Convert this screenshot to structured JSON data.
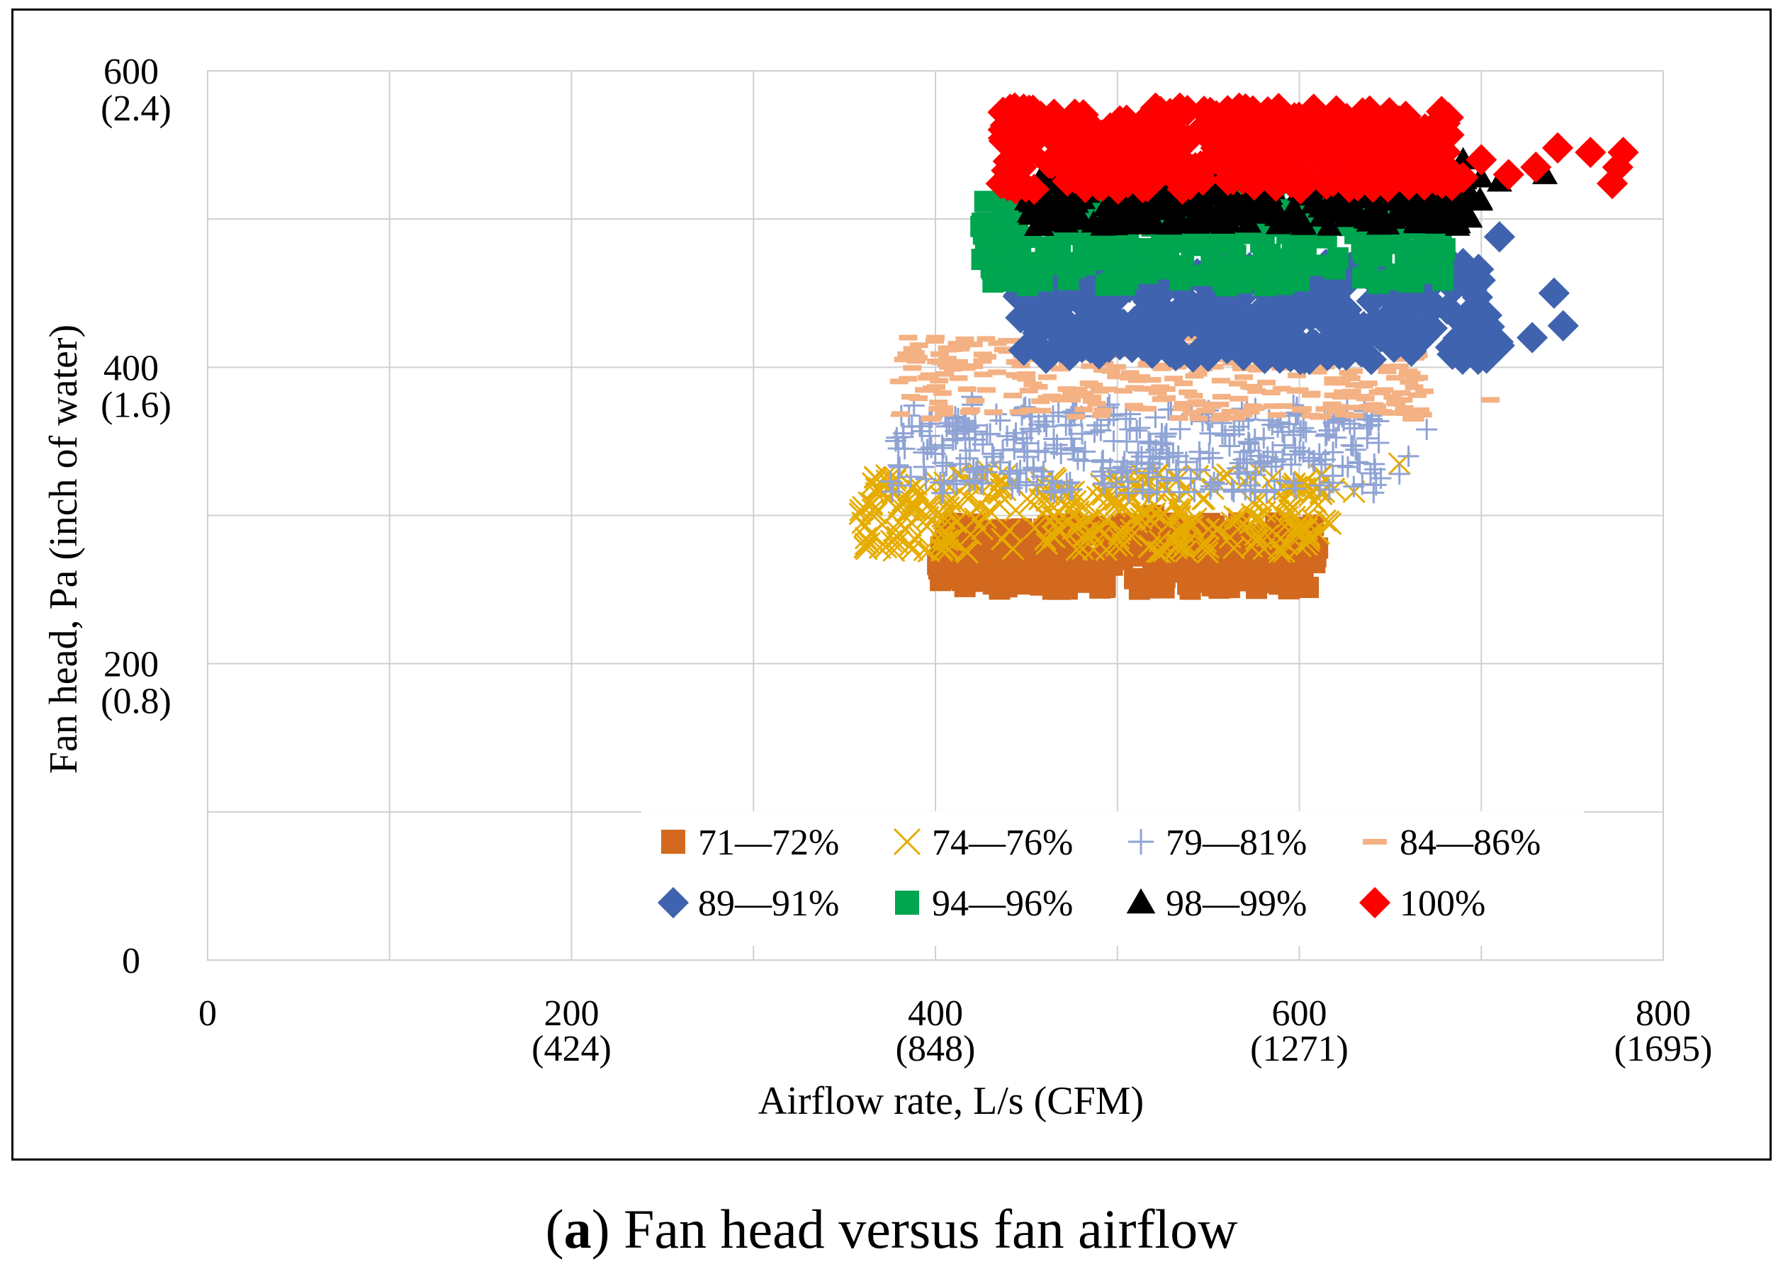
{
  "chart_data": {
    "type": "scatter",
    "title": "",
    "xlabel": "Airflow rate, L/s (CFM)",
    "ylabel": "Fan head, Pa (inch of water)",
    "xlim": [
      0,
      800
    ],
    "ylim": [
      0,
      600
    ],
    "x_major_step": 100,
    "y_major_step": 100,
    "grid": true,
    "x_ticks": [
      {
        "value": 0,
        "label": "0",
        "sub": ""
      },
      {
        "value": 200,
        "label": "200",
        "sub": "(424)"
      },
      {
        "value": 400,
        "label": "400",
        "sub": "(848)"
      },
      {
        "value": 600,
        "label": "600",
        "sub": "(1271)"
      },
      {
        "value": 800,
        "label": "800",
        "sub": "(1695)"
      }
    ],
    "y_ticks": [
      {
        "value": 0,
        "label": "0",
        "sub": ""
      },
      {
        "value": 200,
        "label": "200",
        "sub": "(0.8)"
      },
      {
        "value": 400,
        "label": "400",
        "sub": "(1.6)"
      },
      {
        "value": 600,
        "label": "600",
        "sub": "(2.4)"
      }
    ],
    "legend_position": "bottom-right",
    "series": [
      {
        "name": "71—72%",
        "marker": "square",
        "color": "#D2691E",
        "bands": [
          {
            "x0": 400,
            "x1": 610,
            "y0": 250,
            "y1": 295
          }
        ],
        "extra_points": [
          [
            610,
            278
          ],
          [
            520,
            300
          ]
        ]
      },
      {
        "name": "74—76%",
        "marker": "x",
        "color": "#E6AC00",
        "bands": [
          {
            "x0": 358,
            "x1": 620,
            "y0": 275,
            "y1": 330
          }
        ],
        "extra_points": [
          [
            630,
            316
          ],
          [
            655,
            335
          ],
          [
            360,
            295
          ]
        ]
      },
      {
        "name": "79—81%",
        "marker": "plus",
        "color": "#8FA3D4",
        "bands": [
          {
            "x0": 375,
            "x1": 645,
            "y0": 315,
            "y1": 375
          }
        ],
        "extra_points": [
          [
            655,
            328
          ],
          [
            660,
            340
          ],
          [
            670,
            358
          ],
          [
            420,
            380
          ]
        ]
      },
      {
        "name": "84—86%",
        "marker": "dash",
        "color": "#F4B183",
        "bands": [
          {
            "x0": 380,
            "x1": 670,
            "y0": 365,
            "y1": 420
          }
        ],
        "extra_points": [
          [
            385,
            420
          ],
          [
            400,
            420
          ],
          [
            705,
            378
          ]
        ]
      },
      {
        "name": "89—91%",
        "marker": "diamond",
        "color": "#3F63AE",
        "bands": [
          {
            "x0": 445,
            "x1": 710,
            "y0": 405,
            "y1": 470
          }
        ],
        "extra_points": [
          [
            710,
            488
          ],
          [
            740,
            450
          ],
          [
            745,
            428
          ],
          [
            728,
            420
          ],
          [
            690,
            470
          ]
        ]
      },
      {
        "name": "94—96%",
        "marker": "square",
        "color": "#00A550",
        "bands": [
          {
            "x0": 425,
            "x1": 680,
            "y0": 455,
            "y1": 520
          }
        ],
        "extra_points": [
          [
            425,
            495
          ],
          [
            560,
            455
          ],
          [
            680,
            480
          ]
        ]
      },
      {
        "name": "98—99%",
        "marker": "triangle",
        "color": "#000000",
        "bands": [
          {
            "x0": 450,
            "x1": 700,
            "y0": 495,
            "y1": 530
          }
        ],
        "extra_points": [
          [
            690,
            540
          ],
          [
            735,
            530
          ],
          [
            710,
            525
          ]
        ]
      },
      {
        "name": "100%",
        "marker": "diamond",
        "color": "#FF0000",
        "bands": [
          {
            "x0": 435,
            "x1": 685,
            "y0": 520,
            "y1": 575
          }
        ],
        "extra_points": [
          [
            700,
            540
          ],
          [
            715,
            530
          ],
          [
            730,
            535
          ],
          [
            742,
            548
          ],
          [
            760,
            545
          ],
          [
            772,
            524
          ],
          [
            775,
            535
          ],
          [
            778,
            545
          ],
          [
            690,
            528
          ]
        ]
      }
    ]
  },
  "caption": {
    "letter": "a",
    "text": ") Fan head versus fan airflow",
    "open": "("
  }
}
